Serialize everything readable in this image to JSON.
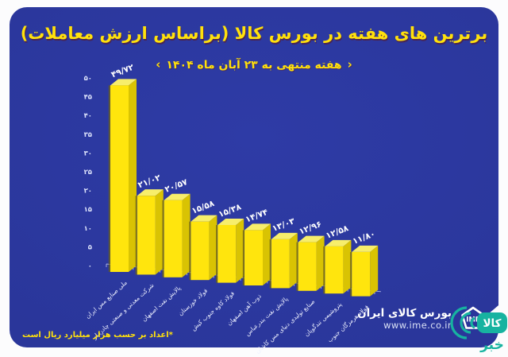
{
  "header": {
    "title": "برترین های هفته در بورس کالا (براساس ارزش معاملات)",
    "subtitle": "هفته منتهی به ۲۳ آبان ماه ۱۴۰۴",
    "subtitle_decor_left": "‹",
    "subtitle_decor_right": "›"
  },
  "chart_data": {
    "type": "bar",
    "style": "3d",
    "title": "برترین های هفته در بورس کالا (براساس ارزش معاملات)",
    "subtitle": "هفته منتهی به ۲۳ آبان ماه ۱۴۰۴",
    "categories": [
      "ملی صنایع مس ایران",
      "شرکت معدنی و صنعتی چادرملو",
      "پالایش نفت اصفهان",
      "فولاد خوزستان",
      "فولاد کاوه جنوب کیش",
      "ذوب آهن اصفهان",
      "پالایش نفت بندرعباس",
      "صنایع تولیدی دنیای مس کاشان",
      "پتروشیمی تندگویان",
      "فولاد هرمزگان جنوب"
    ],
    "values": [
      49.72,
      21.02,
      20.57,
      15.58,
      15.38,
      14.74,
      13.03,
      12.96,
      12.58,
      11.8
    ],
    "value_labels": [
      "۴۹/۷۲",
      "۲۱/۰۲",
      "۲۰/۵۷",
      "۱۵/۵۸",
      "۱۵/۳۸",
      "۱۴/۷۴",
      "۱۳/۰۳",
      "۱۲/۹۶",
      "۱۲/۵۸",
      "۱۱/۸۰"
    ],
    "y_ticks": [
      "۰",
      "۵",
      "۱۰",
      "۱۵",
      "۲۰",
      "۲۵",
      "۳۰",
      "۳۵",
      "۴۰",
      "۴۵",
      "۵۰"
    ],
    "y_tick_values": [
      0,
      5,
      10,
      15,
      20,
      25,
      30,
      35,
      40,
      45,
      50
    ],
    "ylim": [
      0,
      50
    ],
    "xlabel": "",
    "ylabel": "",
    "unit_note": "هزار میلیارد ریال",
    "grid": false,
    "legend": false,
    "bar_color_front": "#ffe50d",
    "bar_color_side": "#d9c303",
    "bar_color_top": "#f7ee6b",
    "bar_shadow": "#6f6410"
  },
  "footnote": "*اعداد بر حسب هزار میلیارد ریال است",
  "brand": {
    "name": "بورس کالای ایران",
    "url": "www.ime.co.ir",
    "logo_text": "IME"
  },
  "watermark": {
    "line1": "کالا",
    "line2": "خبر"
  },
  "colors": {
    "panel_blue": "#2a369a",
    "accent_yellow": "#ffe10c",
    "text_white": "#ffffff",
    "watermark_teal": "#17b3a0"
  }
}
